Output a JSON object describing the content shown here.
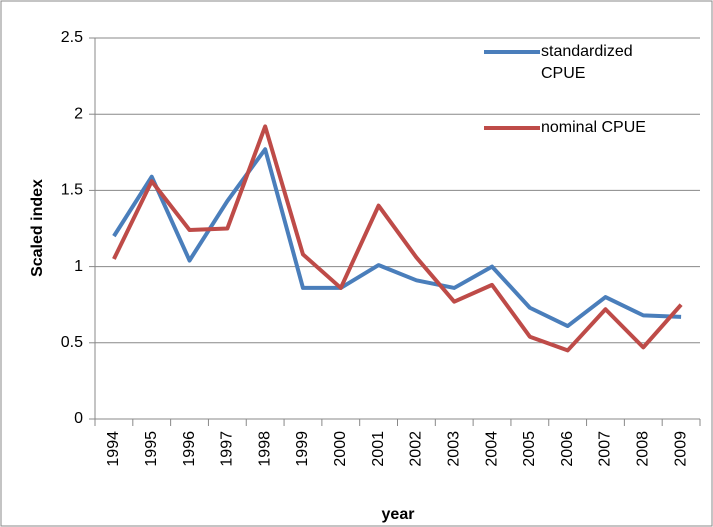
{
  "chart_data": {
    "type": "line",
    "y_label": "Scaled index",
    "x_label": "year",
    "categories": [
      "1994",
      "1995",
      "1996",
      "1997",
      "1998",
      "1999",
      "2000",
      "2001",
      "2002",
      "2003",
      "2004",
      "2005",
      "2006",
      "2007",
      "2008",
      "2009"
    ],
    "series": [
      {
        "name": "standardized CPUE",
        "color": "#4a7ebb",
        "values": [
          1.2,
          1.59,
          1.04,
          1.43,
          1.77,
          0.86,
          0.86,
          1.01,
          0.91,
          0.86,
          1.0,
          0.73,
          0.61,
          0.8,
          0.68,
          0.67
        ]
      },
      {
        "name": "nominal CPUE",
        "color": "#be4b48",
        "values": [
          1.05,
          1.56,
          1.24,
          1.25,
          1.92,
          1.08,
          0.86,
          1.4,
          1.06,
          0.77,
          0.88,
          0.54,
          0.45,
          0.72,
          0.47,
          0.75
        ]
      }
    ],
    "ylim": [
      0,
      2.5
    ],
    "yticks": [
      0,
      0.5,
      1,
      1.5,
      2,
      2.5
    ],
    "grid": true,
    "legend": "top-right"
  }
}
